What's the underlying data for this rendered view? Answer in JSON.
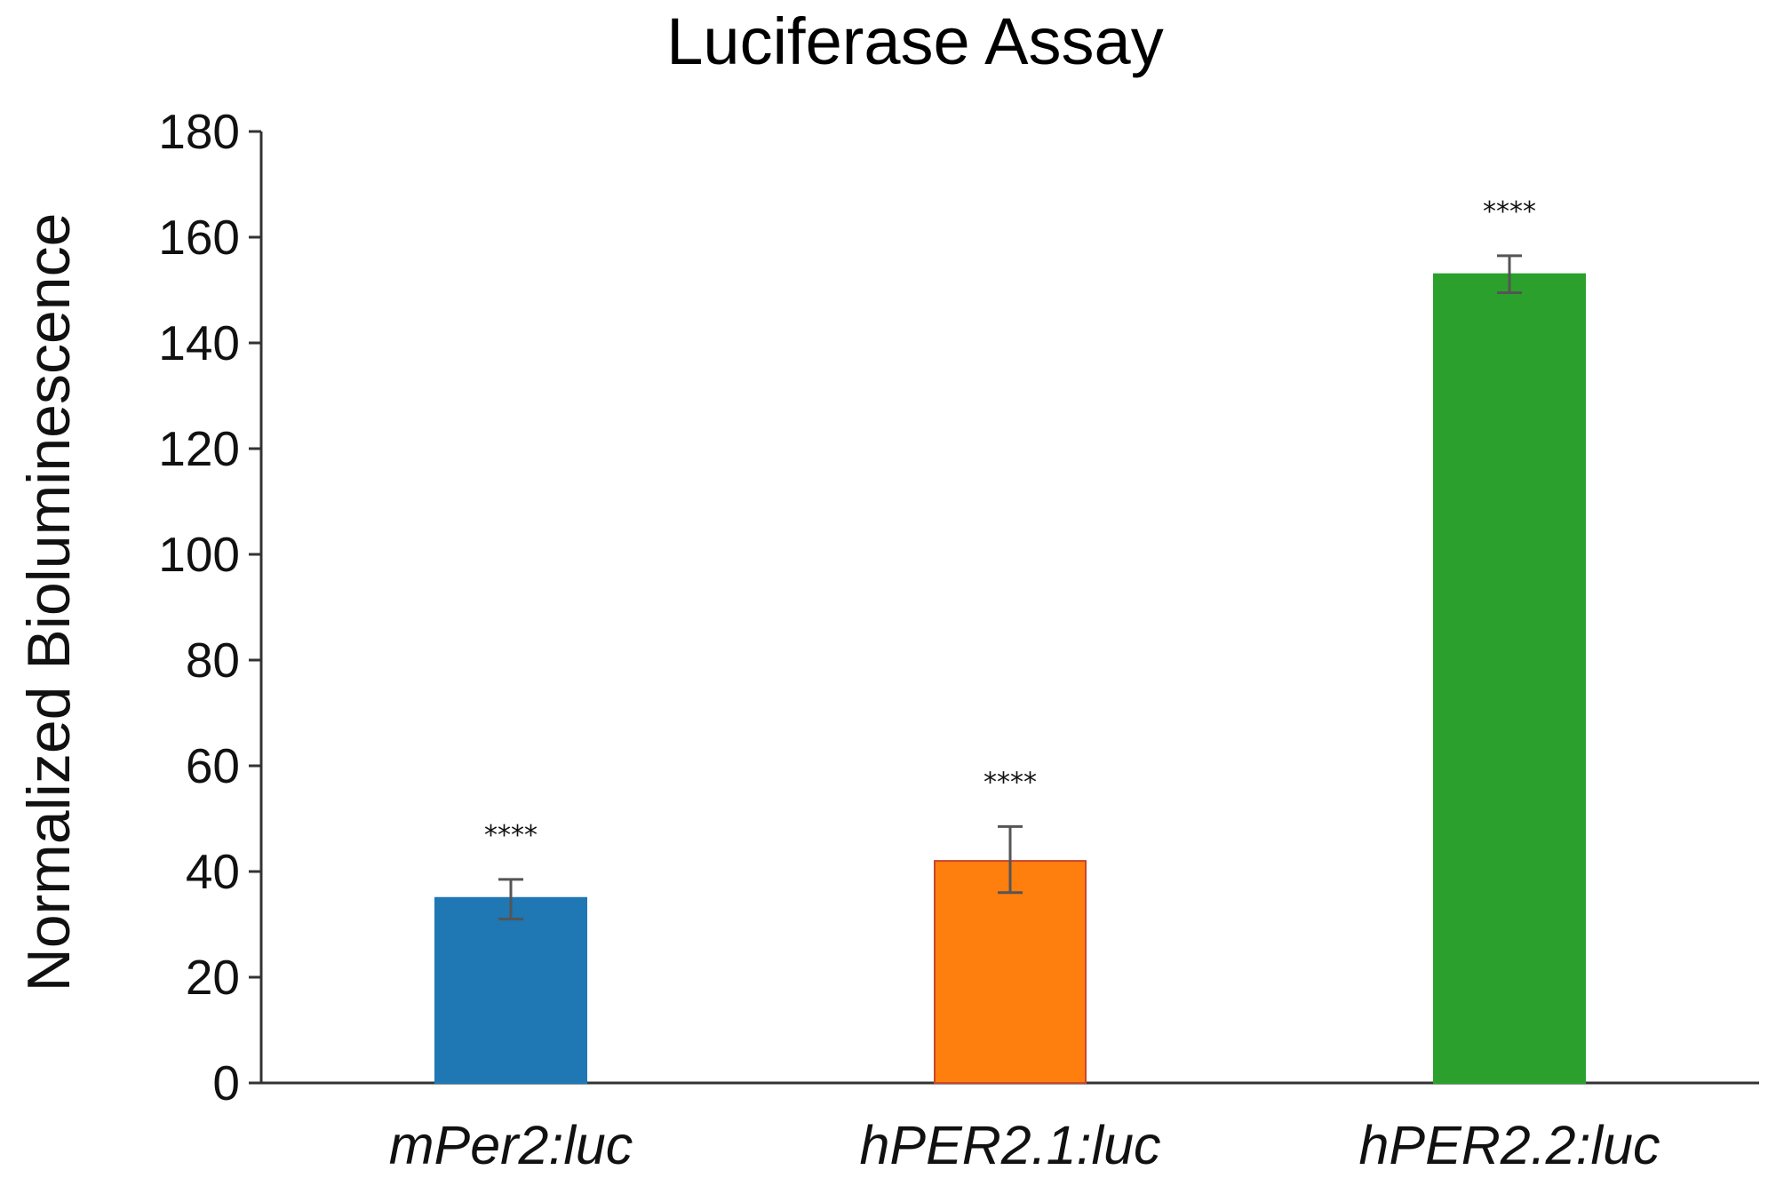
{
  "chart_data": {
    "type": "bar",
    "title": "Luciferase Assay",
    "xlabel": "",
    "ylabel": "Normalized Bioluminescence",
    "ylim": [
      0,
      180
    ],
    "yticks": [
      0,
      20,
      40,
      60,
      80,
      100,
      120,
      140,
      160,
      180
    ],
    "categories": [
      "mPer2:luc",
      "hPER2.1:luc",
      "hPER2.2:luc"
    ],
    "values": [
      35,
      42,
      153
    ],
    "error_low": [
      31,
      36,
      149.5
    ],
    "error_high": [
      38.5,
      48.5,
      156.5
    ],
    "significance": [
      "****",
      "****",
      "****"
    ],
    "colors": [
      "#1f77b4",
      "#ff7f0e",
      "#2ca02c"
    ],
    "edge_colors": [
      "#1f77b4",
      "#c8462a",
      "#2ca02c"
    ],
    "grid": false,
    "legend": "none"
  }
}
